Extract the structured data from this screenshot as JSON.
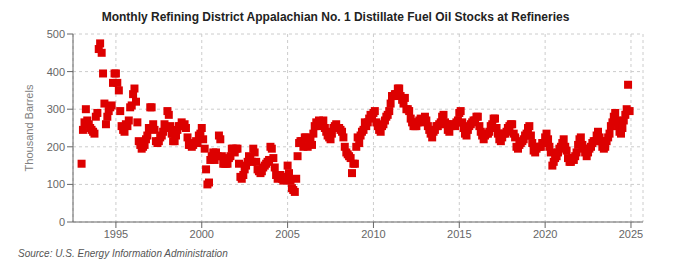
{
  "chart_data": {
    "type": "scatter",
    "title": "Monthly Refining District Appalachian No. 1 Distillate Fuel Oil Stocks at Refineries",
    "ylabel": "Thousand Barrels",
    "source": "Source: U.S. Energy Information Administration",
    "color": "#dd0000",
    "marker": "square",
    "grid": true,
    "xlim": [
      1992.5,
      2025.7
    ],
    "xticks": [
      1995,
      2000,
      2005,
      2010,
      2015,
      2020,
      2025
    ],
    "ylim": [
      0,
      500
    ],
    "yticks": [
      0,
      100,
      200,
      300,
      400,
      500
    ],
    "x": [
      1993.0,
      1993.08,
      1993.17,
      1993.25,
      1993.33,
      1993.42,
      1993.5,
      1993.58,
      1993.67,
      1993.75,
      1993.83,
      1993.92,
      1994.0,
      1994.08,
      1994.17,
      1994.25,
      1994.33,
      1994.42,
      1994.5,
      1994.58,
      1994.67,
      1994.75,
      1994.83,
      1994.92,
      1995.0,
      1995.08,
      1995.17,
      1995.25,
      1995.33,
      1995.42,
      1995.5,
      1995.58,
      1995.67,
      1995.75,
      1995.83,
      1995.92,
      1996.0,
      1996.08,
      1996.17,
      1996.25,
      1996.33,
      1996.42,
      1996.5,
      1996.58,
      1996.67,
      1996.75,
      1996.83,
      1996.92,
      1997.0,
      1997.08,
      1997.17,
      1997.25,
      1997.33,
      1997.42,
      1997.5,
      1997.58,
      1997.67,
      1997.75,
      1997.83,
      1997.92,
      1998.0,
      1998.08,
      1998.17,
      1998.25,
      1998.33,
      1998.42,
      1998.5,
      1998.58,
      1998.67,
      1998.75,
      1998.83,
      1998.92,
      1999.0,
      1999.08,
      1999.17,
      1999.25,
      1999.33,
      1999.42,
      1999.5,
      1999.58,
      1999.67,
      1999.75,
      1999.83,
      1999.92,
      2000.0,
      2000.08,
      2000.17,
      2000.25,
      2000.33,
      2000.42,
      2000.5,
      2000.58,
      2000.67,
      2000.75,
      2000.83,
      2000.92,
      2001.0,
      2001.08,
      2001.17,
      2001.25,
      2001.33,
      2001.42,
      2001.5,
      2001.58,
      2001.67,
      2001.75,
      2001.83,
      2001.92,
      2002.0,
      2002.08,
      2002.17,
      2002.25,
      2002.33,
      2002.42,
      2002.5,
      2002.58,
      2002.67,
      2002.75,
      2002.83,
      2002.92,
      2003.0,
      2003.08,
      2003.17,
      2003.25,
      2003.33,
      2003.42,
      2003.5,
      2003.58,
      2003.67,
      2003.75,
      2003.83,
      2003.92,
      2004.0,
      2004.08,
      2004.17,
      2004.25,
      2004.33,
      2004.42,
      2004.5,
      2004.58,
      2004.67,
      2004.75,
      2004.83,
      2004.92,
      2005.0,
      2005.08,
      2005.17,
      2005.25,
      2005.33,
      2005.42,
      2005.5,
      2005.58,
      2005.67,
      2005.75,
      2005.83,
      2005.92,
      2006.0,
      2006.08,
      2006.17,
      2006.25,
      2006.33,
      2006.42,
      2006.5,
      2006.58,
      2006.67,
      2006.75,
      2006.83,
      2006.92,
      2007.0,
      2007.08,
      2007.17,
      2007.25,
      2007.33,
      2007.42,
      2007.5,
      2007.58,
      2007.67,
      2007.75,
      2007.83,
      2007.92,
      2008.0,
      2008.08,
      2008.17,
      2008.25,
      2008.33,
      2008.42,
      2008.5,
      2008.58,
      2008.67,
      2008.75,
      2008.83,
      2008.92,
      2009.0,
      2009.08,
      2009.17,
      2009.25,
      2009.33,
      2009.42,
      2009.5,
      2009.58,
      2009.67,
      2009.75,
      2009.83,
      2009.92,
      2010.0,
      2010.08,
      2010.17,
      2010.25,
      2010.33,
      2010.42,
      2010.5,
      2010.58,
      2010.67,
      2010.75,
      2010.83,
      2010.92,
      2011.0,
      2011.08,
      2011.17,
      2011.25,
      2011.33,
      2011.42,
      2011.5,
      2011.58,
      2011.67,
      2011.75,
      2011.83,
      2011.92,
      2012.0,
      2012.08,
      2012.17,
      2012.25,
      2012.33,
      2012.42,
      2012.5,
      2012.58,
      2012.67,
      2012.75,
      2012.83,
      2012.92,
      2013.0,
      2013.08,
      2013.17,
      2013.25,
      2013.33,
      2013.42,
      2013.5,
      2013.58,
      2013.67,
      2013.75,
      2013.83,
      2013.92,
      2014.0,
      2014.08,
      2014.17,
      2014.25,
      2014.33,
      2014.42,
      2014.5,
      2014.58,
      2014.67,
      2014.75,
      2014.83,
      2014.92,
      2015.0,
      2015.08,
      2015.17,
      2015.25,
      2015.33,
      2015.42,
      2015.5,
      2015.58,
      2015.67,
      2015.75,
      2015.83,
      2015.92,
      2016.0,
      2016.08,
      2016.17,
      2016.25,
      2016.33,
      2016.42,
      2016.5,
      2016.58,
      2016.67,
      2016.75,
      2016.83,
      2016.92,
      2017.0,
      2017.08,
      2017.17,
      2017.25,
      2017.33,
      2017.42,
      2017.5,
      2017.58,
      2017.67,
      2017.75,
      2017.83,
      2017.92,
      2018.0,
      2018.08,
      2018.17,
      2018.25,
      2018.33,
      2018.42,
      2018.5,
      2018.58,
      2018.67,
      2018.75,
      2018.83,
      2018.92,
      2019.0,
      2019.08,
      2019.17,
      2019.25,
      2019.33,
      2019.42,
      2019.5,
      2019.58,
      2019.67,
      2019.75,
      2019.83,
      2019.92,
      2020.0,
      2020.08,
      2020.17,
      2020.25,
      2020.33,
      2020.42,
      2020.5,
      2020.58,
      2020.67,
      2020.75,
      2020.83,
      2020.92,
      2021.0,
      2021.08,
      2021.17,
      2021.25,
      2021.33,
      2021.42,
      2021.5,
      2021.58,
      2021.67,
      2021.75,
      2021.83,
      2021.92,
      2022.0,
      2022.08,
      2022.17,
      2022.25,
      2022.33,
      2022.42,
      2022.5,
      2022.58,
      2022.67,
      2022.75,
      2022.83,
      2022.92,
      2023.0,
      2023.08,
      2023.17,
      2023.25,
      2023.33,
      2023.42,
      2023.5,
      2023.58,
      2023.67,
      2023.75,
      2023.83,
      2023.92,
      2024.0,
      2024.08,
      2024.17,
      2024.25,
      2024.33,
      2024.42,
      2024.5,
      2024.58,
      2024.67,
      2024.75,
      2024.83,
      2024.92
    ],
    "values": [
      155,
      245,
      265,
      300,
      270,
      260,
      250,
      245,
      240,
      235,
      280,
      290,
      460,
      475,
      450,
      395,
      315,
      260,
      280,
      295,
      305,
      310,
      370,
      395,
      395,
      370,
      350,
      295,
      255,
      245,
      240,
      260,
      255,
      270,
      305,
      310,
      340,
      355,
      320,
      265,
      215,
      205,
      195,
      200,
      205,
      220,
      230,
      250,
      305,
      305,
      260,
      245,
      215,
      210,
      215,
      225,
      230,
      240,
      260,
      250,
      295,
      285,
      255,
      235,
      215,
      215,
      230,
      245,
      255,
      255,
      265,
      255,
      260,
      250,
      225,
      205,
      205,
      200,
      205,
      210,
      215,
      210,
      230,
      235,
      250,
      220,
      195,
      140,
      100,
      105,
      165,
      175,
      185,
      165,
      185,
      175,
      230,
      220,
      175,
      155,
      155,
      155,
      155,
      170,
      175,
      195,
      195,
      185,
      195,
      195,
      155,
      120,
      115,
      125,
      140,
      150,
      160,
      175,
      170,
      160,
      195,
      185,
      160,
      140,
      135,
      130,
      135,
      145,
      150,
      155,
      160,
      165,
      200,
      195,
      170,
      145,
      125,
      115,
      120,
      125,
      115,
      110,
      120,
      120,
      150,
      130,
      110,
      90,
      85,
      80,
      115,
      175,
      210,
      215,
      215,
      200,
      225,
      225,
      200,
      215,
      220,
      205,
      235,
      255,
      265,
      255,
      270,
      265,
      265,
      270,
      250,
      240,
      230,
      225,
      220,
      235,
      250,
      255,
      260,
      250,
      250,
      245,
      240,
      225,
      200,
      185,
      180,
      175,
      170,
      130,
      155,
      155,
      200,
      225,
      210,
      230,
      240,
      245,
      265,
      255,
      265,
      275,
      285,
      280,
      290,
      295,
      265,
      255,
      245,
      240,
      255,
      260,
      270,
      280,
      285,
      295,
      315,
      335,
      335,
      340,
      340,
      355,
      355,
      335,
      325,
      315,
      330,
      300,
      300,
      295,
      275,
      265,
      255,
      255,
      255,
      265,
      270,
      275,
      270,
      265,
      280,
      270,
      255,
      245,
      235,
      225,
      240,
      245,
      255,
      255,
      260,
      265,
      280,
      285,
      265,
      260,
      245,
      240,
      255,
      260,
      260,
      255,
      265,
      270,
      290,
      295,
      265,
      250,
      235,
      230,
      245,
      255,
      260,
      265,
      270,
      270,
      280,
      280,
      255,
      240,
      230,
      220,
      230,
      235,
      235,
      240,
      255,
      260,
      275,
      275,
      250,
      235,
      220,
      215,
      225,
      235,
      235,
      240,
      250,
      255,
      260,
      260,
      235,
      225,
      200,
      195,
      205,
      210,
      215,
      220,
      230,
      235,
      250,
      255,
      230,
      210,
      190,
      185,
      195,
      200,
      200,
      200,
      210,
      210,
      225,
      235,
      220,
      200,
      185,
      150,
      160,
      170,
      175,
      185,
      195,
      200,
      210,
      220,
      200,
      190,
      170,
      160,
      160,
      170,
      165,
      175,
      185,
      205,
      220,
      225,
      205,
      195,
      185,
      175,
      185,
      195,
      200,
      210,
      215,
      215,
      230,
      240,
      225,
      215,
      200,
      195,
      200,
      215,
      225,
      235,
      255,
      265,
      280,
      290,
      270,
      255,
      240,
      235,
      250,
      270,
      285,
      300,
      365,
      295
    ]
  }
}
